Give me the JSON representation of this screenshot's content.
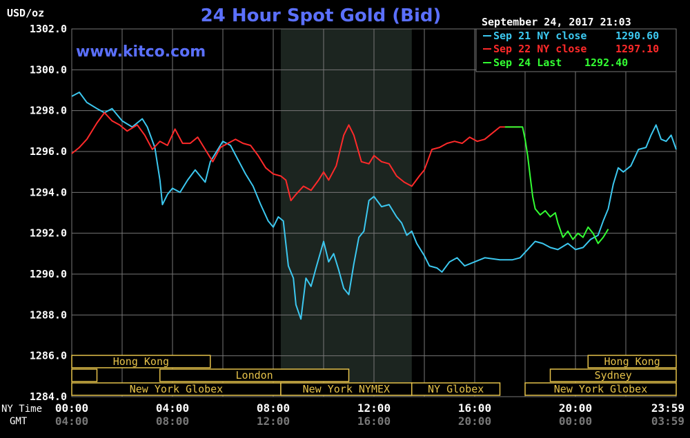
{
  "chart_data": {
    "type": "line",
    "title": "24 Hour Spot Gold (Bid)",
    "website": "www.kitco.com",
    "ylabel": "USD/oz",
    "date_time": "September 24, 2017 21:03",
    "ylim": [
      1284.0,
      1302.0
    ],
    "y_ticks": [
      "1302.0",
      "1300.0",
      "1298.0",
      "1296.0",
      "1294.0",
      "1292.0",
      "1290.0",
      "1288.0",
      "1286.0",
      "1284.0"
    ],
    "xlim_hours": [
      0,
      24
    ],
    "time_axes": {
      "ny_label": "NY Time",
      "gmt_label": "GMT",
      "ny_ticks": [
        "00:00",
        "04:00",
        "08:00",
        "12:00",
        "16:00",
        "20:00",
        "23:59"
      ],
      "gmt_ticks": [
        "04:00",
        "08:00",
        "12:00",
        "16:00",
        "20:00",
        "00:00",
        "03:59"
      ]
    },
    "grid": true,
    "legend_position": "top-right",
    "shaded_region_hours": [
      8.3,
      13.5
    ],
    "colors": {
      "background": "#000000",
      "grid": "#777777",
      "shade": "#1c2520",
      "title": "#5b70ff",
      "market": "#e6c24a",
      "sep21": "#3cc8f0",
      "sep22": "#ff2a2a",
      "sep24": "#33ff33"
    },
    "markets": [
      {
        "name": "Hong Kong",
        "row": 1,
        "start": 0.0,
        "end": 5.5,
        "show_label": true
      },
      {
        "name": "Hong Kong",
        "row": 1,
        "start": 20.5,
        "end": 24.0,
        "show_label": true
      },
      {
        "name": "",
        "row": 2,
        "start": 0.0,
        "end": 1.0,
        "show_label": false
      },
      {
        "name": "London",
        "row": 2,
        "start": 3.5,
        "end": 11.0,
        "show_label": true
      },
      {
        "name": "Sydney",
        "row": 2,
        "start": 19.0,
        "end": 24.0,
        "show_label": true
      },
      {
        "name": "New York Globex",
        "row": 3,
        "start": 0.0,
        "end": 8.3,
        "show_label": true
      },
      {
        "name": "New York NYMEX",
        "row": 3,
        "start": 8.3,
        "end": 13.5,
        "show_label": true
      },
      {
        "name": "NY Globex",
        "row": 3,
        "start": 13.5,
        "end": 17.0,
        "show_label": true
      },
      {
        "name": "New York Globex",
        "row": 3,
        "start": 18.0,
        "end": 24.0,
        "show_label": true
      }
    ],
    "series": [
      {
        "name": "Sep 21 NY close",
        "legend_value": "1290.60",
        "color": "#3cc8f0",
        "points": [
          [
            0.0,
            1298.7
          ],
          [
            0.3,
            1298.9
          ],
          [
            0.6,
            1298.4
          ],
          [
            1.0,
            1298.1
          ],
          [
            1.3,
            1297.9
          ],
          [
            1.6,
            1298.1
          ],
          [
            2.0,
            1297.5
          ],
          [
            2.4,
            1297.2
          ],
          [
            2.8,
            1297.6
          ],
          [
            3.0,
            1297.2
          ],
          [
            3.3,
            1296.2
          ],
          [
            3.5,
            1294.6
          ],
          [
            3.6,
            1293.4
          ],
          [
            3.8,
            1293.9
          ],
          [
            4.0,
            1294.2
          ],
          [
            4.3,
            1294.0
          ],
          [
            4.6,
            1294.6
          ],
          [
            4.9,
            1295.1
          ],
          [
            5.1,
            1294.8
          ],
          [
            5.3,
            1294.5
          ],
          [
            5.5,
            1295.5
          ],
          [
            5.8,
            1296.1
          ],
          [
            6.0,
            1296.5
          ],
          [
            6.3,
            1296.3
          ],
          [
            6.6,
            1295.6
          ],
          [
            6.9,
            1294.9
          ],
          [
            7.2,
            1294.3
          ],
          [
            7.5,
            1293.4
          ],
          [
            7.8,
            1292.6
          ],
          [
            8.0,
            1292.3
          ],
          [
            8.2,
            1292.8
          ],
          [
            8.4,
            1292.6
          ],
          [
            8.6,
            1290.4
          ],
          [
            8.8,
            1289.8
          ],
          [
            8.9,
            1288.5
          ],
          [
            9.1,
            1287.8
          ],
          [
            9.3,
            1289.8
          ],
          [
            9.5,
            1289.4
          ],
          [
            9.7,
            1290.3
          ],
          [
            10.0,
            1291.6
          ],
          [
            10.2,
            1290.6
          ],
          [
            10.4,
            1291.0
          ],
          [
            10.6,
            1290.2
          ],
          [
            10.8,
            1289.3
          ],
          [
            11.0,
            1289.0
          ],
          [
            11.2,
            1290.5
          ],
          [
            11.4,
            1291.8
          ],
          [
            11.6,
            1292.1
          ],
          [
            11.8,
            1293.6
          ],
          [
            12.0,
            1293.8
          ],
          [
            12.3,
            1293.3
          ],
          [
            12.6,
            1293.4
          ],
          [
            12.9,
            1292.8
          ],
          [
            13.1,
            1292.5
          ],
          [
            13.3,
            1291.9
          ],
          [
            13.5,
            1292.1
          ],
          [
            13.7,
            1291.5
          ],
          [
            14.0,
            1290.9
          ],
          [
            14.2,
            1290.4
          ],
          [
            14.5,
            1290.3
          ],
          [
            14.7,
            1290.1
          ],
          [
            15.0,
            1290.6
          ],
          [
            15.3,
            1290.8
          ],
          [
            15.6,
            1290.4
          ],
          [
            16.0,
            1290.6
          ],
          [
            16.4,
            1290.8
          ],
          [
            17.0,
            1290.7
          ],
          [
            17.5,
            1290.7
          ],
          [
            17.8,
            1290.8
          ],
          [
            18.1,
            1291.2
          ],
          [
            18.4,
            1291.6
          ],
          [
            18.7,
            1291.5
          ],
          [
            19.0,
            1291.3
          ],
          [
            19.3,
            1291.2
          ],
          [
            19.7,
            1291.5
          ],
          [
            20.0,
            1291.2
          ],
          [
            20.3,
            1291.3
          ],
          [
            20.6,
            1291.7
          ],
          [
            20.9,
            1291.9
          ],
          [
            21.1,
            1292.6
          ],
          [
            21.3,
            1293.2
          ],
          [
            21.5,
            1294.4
          ],
          [
            21.7,
            1295.2
          ],
          [
            21.9,
            1295.0
          ],
          [
            22.2,
            1295.3
          ],
          [
            22.5,
            1296.1
          ],
          [
            22.8,
            1296.2
          ],
          [
            23.0,
            1296.8
          ],
          [
            23.2,
            1297.3
          ],
          [
            23.4,
            1296.6
          ],
          [
            23.6,
            1296.5
          ],
          [
            23.8,
            1296.8
          ],
          [
            24.0,
            1296.1
          ]
        ]
      },
      {
        "name": "Sep 22 NY close",
        "legend_value": "1297.10",
        "color": "#ff2a2a",
        "points": [
          [
            0.0,
            1295.9
          ],
          [
            0.3,
            1296.2
          ],
          [
            0.6,
            1296.6
          ],
          [
            1.0,
            1297.4
          ],
          [
            1.3,
            1297.9
          ],
          [
            1.6,
            1297.5
          ],
          [
            1.9,
            1297.3
          ],
          [
            2.2,
            1297.0
          ],
          [
            2.6,
            1297.3
          ],
          [
            2.9,
            1296.8
          ],
          [
            3.2,
            1296.1
          ],
          [
            3.5,
            1296.5
          ],
          [
            3.8,
            1296.3
          ],
          [
            4.1,
            1297.1
          ],
          [
            4.4,
            1296.4
          ],
          [
            4.7,
            1296.4
          ],
          [
            5.0,
            1296.7
          ],
          [
            5.3,
            1296.1
          ],
          [
            5.6,
            1295.5
          ],
          [
            5.9,
            1296.2
          ],
          [
            6.2,
            1296.4
          ],
          [
            6.5,
            1296.6
          ],
          [
            6.8,
            1296.4
          ],
          [
            7.1,
            1296.3
          ],
          [
            7.4,
            1295.8
          ],
          [
            7.7,
            1295.2
          ],
          [
            8.0,
            1294.9
          ],
          [
            8.3,
            1294.8
          ],
          [
            8.5,
            1294.6
          ],
          [
            8.7,
            1293.6
          ],
          [
            8.9,
            1293.9
          ],
          [
            9.2,
            1294.3
          ],
          [
            9.5,
            1294.1
          ],
          [
            9.8,
            1294.6
          ],
          [
            10.0,
            1295.0
          ],
          [
            10.2,
            1294.6
          ],
          [
            10.5,
            1295.3
          ],
          [
            10.8,
            1296.8
          ],
          [
            11.0,
            1297.3
          ],
          [
            11.2,
            1296.8
          ],
          [
            11.5,
            1295.5
          ],
          [
            11.8,
            1295.4
          ],
          [
            12.0,
            1295.8
          ],
          [
            12.3,
            1295.5
          ],
          [
            12.6,
            1295.4
          ],
          [
            12.9,
            1294.8
          ],
          [
            13.2,
            1294.5
          ],
          [
            13.5,
            1294.3
          ],
          [
            13.8,
            1294.8
          ],
          [
            14.0,
            1295.1
          ],
          [
            14.3,
            1296.1
          ],
          [
            14.6,
            1296.2
          ],
          [
            14.9,
            1296.4
          ],
          [
            15.2,
            1296.5
          ],
          [
            15.5,
            1296.4
          ],
          [
            15.8,
            1296.7
          ],
          [
            16.1,
            1296.5
          ],
          [
            16.4,
            1296.6
          ],
          [
            16.8,
            1297.0
          ],
          [
            17.0,
            1297.2
          ],
          [
            17.8,
            1297.2
          ]
        ]
      },
      {
        "name": "Sep 24 Last",
        "legend_value": "1292.40",
        "color": "#33ff33",
        "points": [
          [
            17.2,
            1297.2
          ],
          [
            17.9,
            1297.2
          ],
          [
            18.0,
            1296.6
          ],
          [
            18.1,
            1295.8
          ],
          [
            18.2,
            1294.8
          ],
          [
            18.3,
            1293.8
          ],
          [
            18.4,
            1293.2
          ],
          [
            18.6,
            1292.9
          ],
          [
            18.8,
            1293.1
          ],
          [
            19.0,
            1292.8
          ],
          [
            19.2,
            1293.0
          ],
          [
            19.3,
            1292.5
          ],
          [
            19.5,
            1291.8
          ],
          [
            19.7,
            1292.1
          ],
          [
            19.9,
            1291.7
          ],
          [
            20.1,
            1292.0
          ],
          [
            20.3,
            1291.8
          ],
          [
            20.5,
            1292.3
          ],
          [
            20.7,
            1292.0
          ],
          [
            20.9,
            1291.5
          ],
          [
            21.1,
            1291.8
          ],
          [
            21.3,
            1292.2
          ]
        ]
      }
    ]
  }
}
